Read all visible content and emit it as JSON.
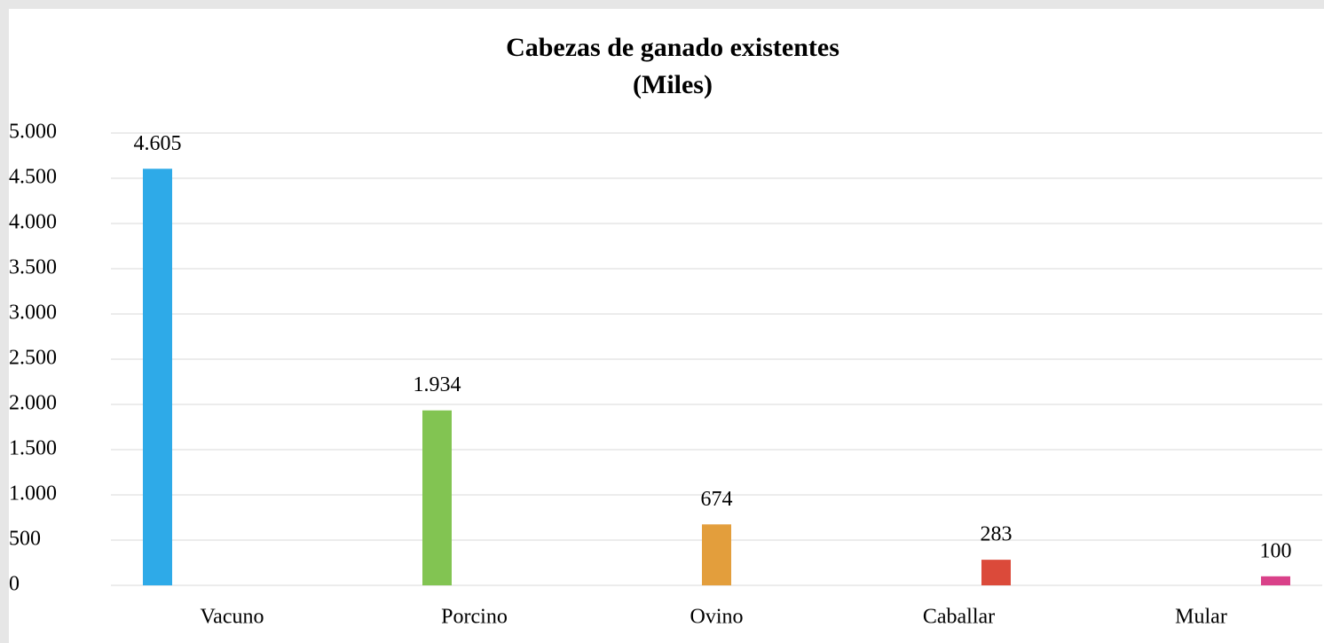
{
  "chart_data": {
    "type": "bar",
    "title": "Cabezas de ganado existentes",
    "subtitle": "(Miles)",
    "categories": [
      "Vacuno",
      "Porcino",
      "Ovino",
      "Caballar",
      "Mular"
    ],
    "values": [
      4605,
      1934,
      674,
      283,
      100
    ],
    "value_labels": [
      "4.605",
      "1.934",
      "674",
      "283",
      "100"
    ],
    "colors": [
      "#2eaae8",
      "#82c452",
      "#e39e3c",
      "#db4a3a",
      "#d94189"
    ],
    "ylim": [
      0,
      5000
    ],
    "yticks": [
      0,
      500,
      {
        "value": 1000,
        "label": "1.000"
      },
      {
        "value": 1500,
        "label": "1.500"
      },
      {
        "value": 2000,
        "label": "2.000"
      },
      {
        "value": 2500,
        "label": "2.500"
      },
      {
        "value": 3000,
        "label": "3.000"
      },
      {
        "value": 3500,
        "label": "3.500"
      },
      {
        "value": 4000,
        "label": "4.000"
      },
      {
        "value": 4500,
        "label": "4.500"
      },
      {
        "value": 5000,
        "label": "5.000"
      }
    ],
    "grid": true
  }
}
